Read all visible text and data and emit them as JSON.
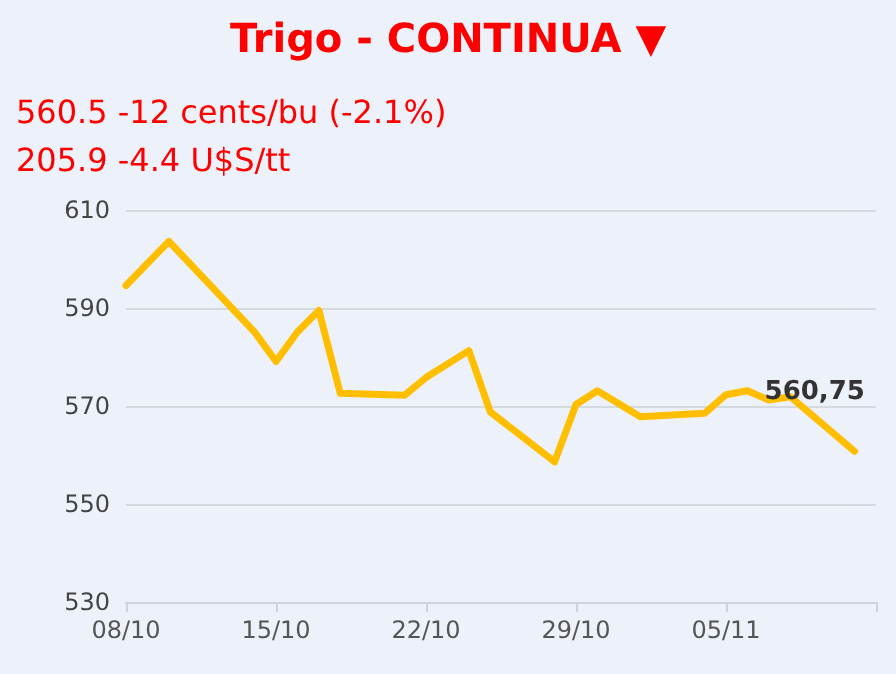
{
  "chart_data": {
    "type": "line",
    "title": "Trigo - CONTINUA ▼",
    "subtitle": "560.5 -12 cents/bu (-2.1%)",
    "annotations": [
      "205.9 -4.4 U$S/tt",
      {
        "text": "560,75",
        "x": "--11-11",
        "y": 560.75
      }
    ],
    "x": [
      "--10-08",
      "--10-10",
      "--10-14",
      "--10-15",
      "--10-16",
      "--10-17",
      "--10-18",
      "--10-21",
      "--10-22",
      "--10-24",
      "--10-25",
      "--10-28",
      "--10-29",
      "--10-30",
      "--11-01",
      "--11-04",
      "--11-05",
      "--11-06",
      "--11-07",
      "--11-08",
      "--11-11"
    ],
    "series": [
      {
        "color": "#ffbf00",
        "values": [
          594.6,
          603.6,
          585.1,
          579.1,
          585.1,
          589.5,
          572.6,
          572.2,
          575.8,
          581.3,
          568.8,
          558.6,
          570.3,
          573.1,
          567.8,
          568.5,
          572.3,
          573.1,
          571.2,
          571.9,
          560.75
        ]
      }
    ],
    "xlim": [
      "--10-08",
      "--11-12"
    ],
    "xticks": [
      {
        "value": "--10-08",
        "label": "08/10"
      },
      {
        "value": "--10-15",
        "label": "15/10"
      },
      {
        "value": "--10-22",
        "label": "22/10"
      },
      {
        "value": "--10-29",
        "label": "29/10"
      },
      {
        "value": "--11-05",
        "label": "05/11"
      },
      {
        "value": "--11-12",
        "label": null
      }
    ],
    "ylim": [
      530,
      610
    ],
    "yticks": [
      530,
      550,
      570,
      590,
      610
    ],
    "grid": "y",
    "marker": "none",
    "line_style": "solid"
  }
}
